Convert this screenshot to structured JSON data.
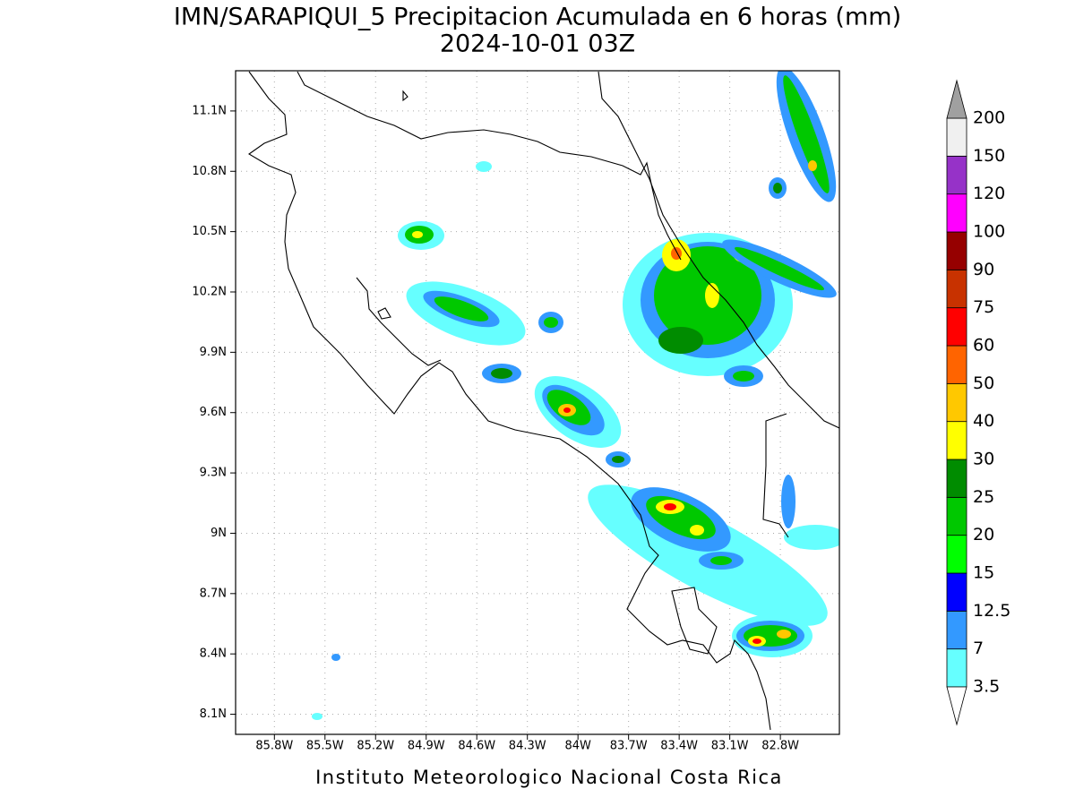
{
  "map": {
    "title": "IMN/SARAPIQUI_5 Precipitacion Acumulada en 6 horas (mm)",
    "subtitle": "2024-10-01 03Z",
    "footer": "Instituto Meteorologico Nacional Costa Rica",
    "xlim": [
      -86.03,
      -82.45
    ],
    "ylim": [
      8.0,
      11.3
    ],
    "xticks": [
      {
        "value": -85.8,
        "label": "85.8W"
      },
      {
        "value": -85.5,
        "label": "85.5W"
      },
      {
        "value": -85.2,
        "label": "85.2W"
      },
      {
        "value": -84.9,
        "label": "84.9W"
      },
      {
        "value": -84.6,
        "label": "84.6W"
      },
      {
        "value": -84.3,
        "label": "84.3W"
      },
      {
        "value": -84.0,
        "label": "84W"
      },
      {
        "value": -83.7,
        "label": "83.7W"
      },
      {
        "value": -83.4,
        "label": "83.4W"
      },
      {
        "value": -83.1,
        "label": "83.1W"
      },
      {
        "value": -82.8,
        "label": "82.8W"
      }
    ],
    "yticks": [
      {
        "value": 8.1,
        "label": "8.1N"
      },
      {
        "value": 8.4,
        "label": "8.4N"
      },
      {
        "value": 8.7,
        "label": "8.7N"
      },
      {
        "value": 9.0,
        "label": "9N"
      },
      {
        "value": 9.3,
        "label": "9.3N"
      },
      {
        "value": 9.6,
        "label": "9.6N"
      },
      {
        "value": 9.9,
        "label": "9.9N"
      },
      {
        "value": 10.2,
        "label": "10.2N"
      },
      {
        "value": 10.5,
        "label": "10.5N"
      },
      {
        "value": 10.8,
        "label": "10.8N"
      },
      {
        "value": 11.1,
        "label": "11.1N"
      }
    ],
    "grid": true,
    "colorbar": {
      "levels": [
        3.5,
        7,
        12.5,
        15,
        20,
        25,
        30,
        40,
        50,
        60,
        75,
        90,
        100,
        120,
        150,
        200
      ],
      "colors": [
        "#66ffff",
        "#3399ff",
        "#0000ff",
        "#00ff00",
        "#00c800",
        "#008c00",
        "#ffff00",
        "#ffc800",
        "#ff6400",
        "#ff0000",
        "#c83200",
        "#960000",
        "#ff00ff",
        "#9632c8",
        "#f0f0f0"
      ],
      "under_color": "#ffffff",
      "over_color": "#a0a0a0"
    }
  }
}
